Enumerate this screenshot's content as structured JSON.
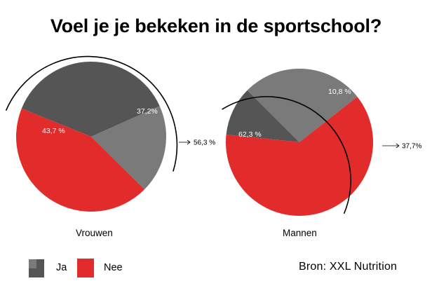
{
  "title": "Voel je je bekeken in de sportschool?",
  "source": "Bron: XXL Nutrition",
  "legend": [
    {
      "label": "Ja",
      "colors": [
        "#7a7a7a",
        "#555555"
      ]
    },
    {
      "label": "Nee",
      "color": "#e22b2b"
    }
  ],
  "chart_data": [
    {
      "type": "pie",
      "name": "Vrouwen",
      "slices": [
        {
          "value": 37.2,
          "label": "37,2%",
          "category": "Ja",
          "color": "#555555"
        },
        {
          "value": 19.1,
          "label": "",
          "category": "Ja",
          "color": "#7a7a7a"
        },
        {
          "value": 43.7,
          "label": "43,7 %",
          "category": "Nee",
          "color": "#e22b2b"
        }
      ],
      "bracket_label": "56,3 %"
    },
    {
      "type": "pie",
      "name": "Mannen",
      "slices": [
        {
          "value": 10.8,
          "label": "10,8 %",
          "category": "Ja",
          "color": "#555555"
        },
        {
          "value": 26.9,
          "label": "",
          "category": "Ja",
          "color": "#7a7a7a"
        },
        {
          "value": 62.3,
          "label": "62,3 %",
          "category": "Nee",
          "color": "#e22b2b"
        }
      ],
      "bracket_label": "37,7%"
    }
  ]
}
